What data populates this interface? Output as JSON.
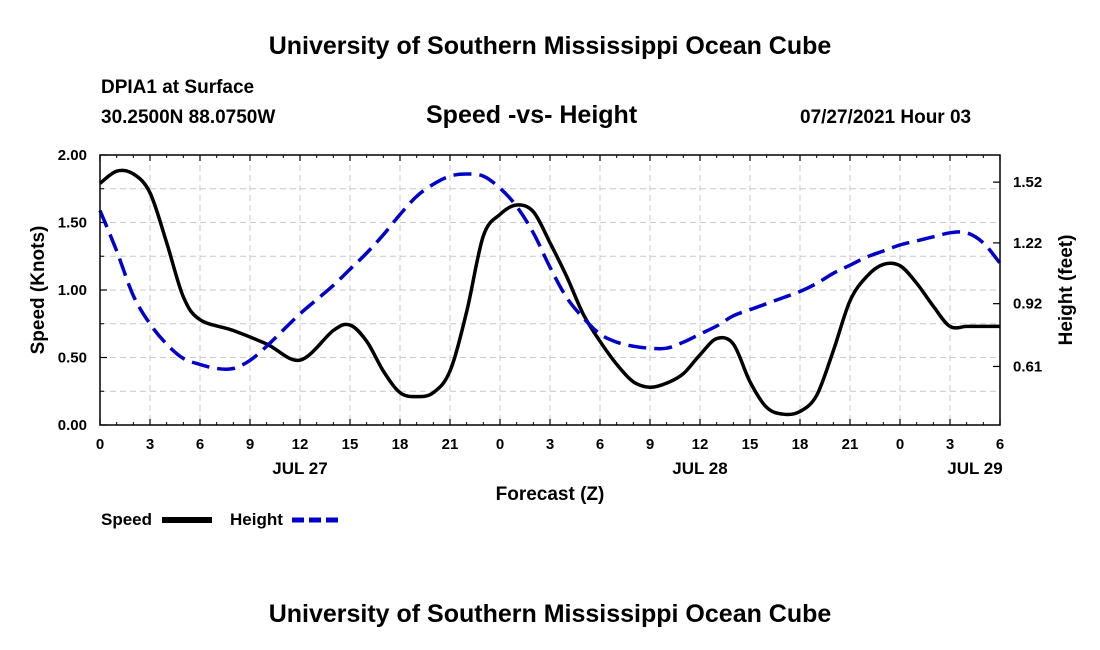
{
  "header": {
    "title": "University of Southern Mississippi Ocean Cube",
    "station": "DPIA1 at Surface",
    "location": "30.2500N  88.0750W",
    "date": "07/27/2021 Hour 03"
  },
  "footer": {
    "title": "University of Southern Mississippi Ocean Cube"
  },
  "legend": {
    "speed_label": "Speed",
    "height_label": "Height"
  },
  "colors": {
    "speed": "#000000",
    "height": "#0000cc",
    "grid": "#c8c8c8"
  },
  "chart_data": {
    "type": "line",
    "title": "Speed -vs- Height",
    "xlabel": "Forecast (Z)",
    "ylabel": "Speed (Knots)",
    "y2label": "Height (feet)",
    "xlim": [
      0,
      54
    ],
    "ylim": [
      0,
      2
    ],
    "y2lim": [
      0.321,
      1.654
    ],
    "x_ticks": [
      0,
      3,
      6,
      9,
      12,
      15,
      18,
      21,
      24,
      27,
      30,
      33,
      36,
      39,
      42,
      45,
      48,
      51,
      54
    ],
    "x_tick_labels": [
      "0",
      "3",
      "6",
      "9",
      "12",
      "15",
      "18",
      "21",
      "0",
      "3",
      "6",
      "9",
      "12",
      "15",
      "18",
      "21",
      "0",
      "3",
      "6"
    ],
    "day_labels": [
      {
        "x": 12,
        "label": "JUL 27"
      },
      {
        "x": 36,
        "label": "JUL 28"
      },
      {
        "x": 52.5,
        "label": "JUL 29"
      }
    ],
    "y_ticks": [
      0,
      0.5,
      1,
      1.5,
      2
    ],
    "y_tick_labels": [
      "0.00",
      "0.50",
      "1.00",
      "1.50",
      "2.00"
    ],
    "y2_ticks": [
      0.61,
      0.92,
      1.22,
      1.52
    ],
    "y2_tick_labels": [
      "0.61",
      "0.92",
      "1.22",
      "1.52"
    ],
    "series": [
      {
        "name": "Speed",
        "axis": "left",
        "style": "solid",
        "x": [
          0,
          1,
          2,
          3,
          4,
          5,
          6,
          8,
          10,
          12,
          14,
          15,
          16,
          17,
          18,
          19,
          20,
          21,
          22,
          23,
          24,
          25,
          26,
          27,
          28,
          29,
          30,
          31,
          32,
          33,
          34,
          35,
          36,
          37,
          38,
          39,
          40,
          41,
          42,
          43,
          44,
          45,
          46,
          47,
          48,
          49,
          50,
          51,
          52,
          53,
          54
        ],
        "y": [
          1.79,
          1.88,
          1.86,
          1.72,
          1.35,
          0.95,
          0.78,
          0.7,
          0.6,
          0.48,
          0.7,
          0.74,
          0.62,
          0.4,
          0.24,
          0.21,
          0.24,
          0.4,
          0.84,
          1.4,
          1.56,
          1.63,
          1.58,
          1.35,
          1.1,
          0.82,
          0.62,
          0.45,
          0.32,
          0.28,
          0.31,
          0.38,
          0.52,
          0.64,
          0.6,
          0.32,
          0.13,
          0.08,
          0.1,
          0.22,
          0.55,
          0.92,
          1.1,
          1.19,
          1.18,
          1.05,
          0.88,
          0.73,
          0.73,
          0.73,
          0.73
        ]
      },
      {
        "name": "Height",
        "axis": "right",
        "style": "dashed",
        "x": [
          0,
          1,
          2,
          3,
          4,
          5,
          6,
          7,
          8,
          9,
          10,
          11,
          12,
          13,
          14,
          15,
          16,
          17,
          18,
          19,
          20,
          21,
          22,
          23,
          24,
          25,
          26,
          27,
          28,
          29,
          30,
          31,
          32,
          33,
          34,
          35,
          36,
          37,
          38,
          39,
          40,
          41,
          42,
          43,
          44,
          45,
          46,
          47,
          48,
          49,
          50,
          51,
          52,
          53,
          54
        ],
        "y": [
          1.38,
          1.18,
          0.96,
          0.82,
          0.72,
          0.65,
          0.62,
          0.6,
          0.6,
          0.64,
          0.71,
          0.79,
          0.87,
          0.94,
          1.01,
          1.09,
          1.17,
          1.26,
          1.36,
          1.45,
          1.51,
          1.55,
          1.56,
          1.55,
          1.49,
          1.4,
          1.27,
          1.1,
          0.95,
          0.85,
          0.77,
          0.73,
          0.71,
          0.7,
          0.7,
          0.73,
          0.77,
          0.81,
          0.86,
          0.89,
          0.92,
          0.95,
          0.98,
          1.02,
          1.07,
          1.11,
          1.15,
          1.18,
          1.21,
          1.23,
          1.25,
          1.27,
          1.27,
          1.22,
          1.12
        ]
      }
    ]
  }
}
